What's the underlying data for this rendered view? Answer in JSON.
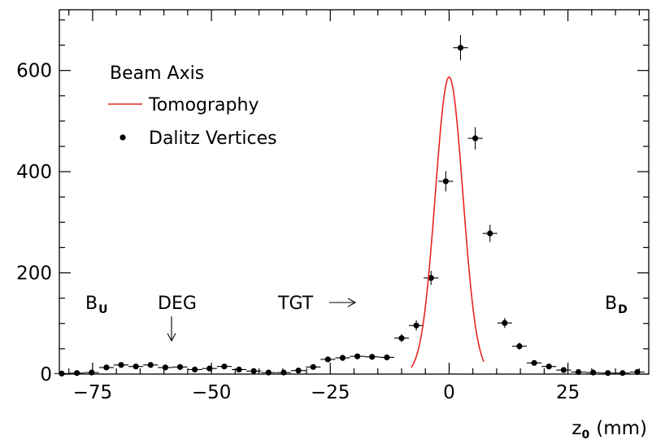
{
  "chart_data": {
    "type": "scatter",
    "xlabel": "z",
    "xlabel_sub": "0",
    "xlabel_unit": "(mm)",
    "xlim": [
      -82,
      42
    ],
    "ylim": [
      0,
      720
    ],
    "x_ticks": [
      -75,
      -50,
      -25,
      0,
      25
    ],
    "x_tick_labels": [
      "−75",
      "−50",
      "−25",
      "0",
      "25"
    ],
    "y_ticks": [
      0,
      200,
      400,
      600
    ],
    "y_tick_labels": [
      "0",
      "200",
      "400",
      "600"
    ],
    "grid": false,
    "legend": {
      "title": "Beam Axis",
      "entries": [
        {
          "label": "Tomography",
          "kind": "line",
          "color": "#e8251f"
        },
        {
          "label": "Dalitz Vertices",
          "kind": "marker",
          "color": "#000000"
        }
      ],
      "placement": "top-left"
    },
    "series": [
      {
        "name": "Dalitz Vertices",
        "kind": "points",
        "color": "#000000",
        "x_half_width": 1.55,
        "points": [
          {
            "x": -81.5,
            "y": 1,
            "e": 1
          },
          {
            "x": -78.3,
            "y": 2,
            "e": 1
          },
          {
            "x": -75.2,
            "y": 3,
            "e": 1
          },
          {
            "x": -72.1,
            "y": 13,
            "e": 3
          },
          {
            "x": -69.0,
            "y": 18,
            "e": 4
          },
          {
            "x": -65.9,
            "y": 15,
            "e": 4
          },
          {
            "x": -62.8,
            "y": 18,
            "e": 4
          },
          {
            "x": -59.7,
            "y": 13,
            "e": 3
          },
          {
            "x": -56.6,
            "y": 14,
            "e": 4
          },
          {
            "x": -53.5,
            "y": 9,
            "e": 3
          },
          {
            "x": -50.4,
            "y": 11,
            "e": 3
          },
          {
            "x": -47.3,
            "y": 15,
            "e": 4
          },
          {
            "x": -44.2,
            "y": 9,
            "e": 3
          },
          {
            "x": -41.1,
            "y": 6,
            "e": 2
          },
          {
            "x": -38.0,
            "y": 3,
            "e": 2
          },
          {
            "x": -34.8,
            "y": 3,
            "e": 2
          },
          {
            "x": -31.7,
            "y": 7,
            "e": 3
          },
          {
            "x": -28.6,
            "y": 14,
            "e": 4
          },
          {
            "x": -25.5,
            "y": 29,
            "e": 5
          },
          {
            "x": -22.4,
            "y": 32,
            "e": 6
          },
          {
            "x": -19.3,
            "y": 35,
            "e": 6
          },
          {
            "x": -16.2,
            "y": 34,
            "e": 6
          },
          {
            "x": -13.1,
            "y": 33,
            "e": 6
          },
          {
            "x": -10.0,
            "y": 71,
            "e": 8
          },
          {
            "x": -6.9,
            "y": 96,
            "e": 10
          },
          {
            "x": -3.8,
            "y": 190,
            "e": 14
          },
          {
            "x": -0.7,
            "y": 381,
            "e": 20
          },
          {
            "x": 2.4,
            "y": 645,
            "e": 25
          },
          {
            "x": 5.5,
            "y": 466,
            "e": 22
          },
          {
            "x": 8.6,
            "y": 278,
            "e": 17
          },
          {
            "x": 11.7,
            "y": 101,
            "e": 10
          },
          {
            "x": 14.8,
            "y": 55,
            "e": 7
          },
          {
            "x": 17.9,
            "y": 22,
            "e": 5
          },
          {
            "x": 21.0,
            "y": 15,
            "e": 4
          },
          {
            "x": 24.1,
            "y": 8,
            "e": 3
          },
          {
            "x": 27.2,
            "y": 4,
            "e": 2
          },
          {
            "x": 30.3,
            "y": 3,
            "e": 2
          },
          {
            "x": 33.4,
            "y": 2,
            "e": 1
          },
          {
            "x": 36.5,
            "y": 2,
            "e": 1
          },
          {
            "x": 39.6,
            "y": 4,
            "e": 2
          }
        ]
      },
      {
        "name": "Tomography",
        "kind": "gaussian",
        "color": "#e8251f",
        "amplitude": 587,
        "mean": 0.0,
        "sigma": 2.9,
        "x_range": [
          -8,
          7.3
        ]
      }
    ],
    "annotations": [
      {
        "text": "B",
        "sub": "U",
        "x": -75,
        "y": 120
      },
      {
        "text": "DEG",
        "x": -57,
        "y": 120,
        "arrow": "down"
      },
      {
        "text": "TGT",
        "x": -32,
        "y": 120,
        "arrow": "right"
      },
      {
        "text": "B",
        "sub": "D",
        "x": 32,
        "y": 120
      }
    ]
  }
}
